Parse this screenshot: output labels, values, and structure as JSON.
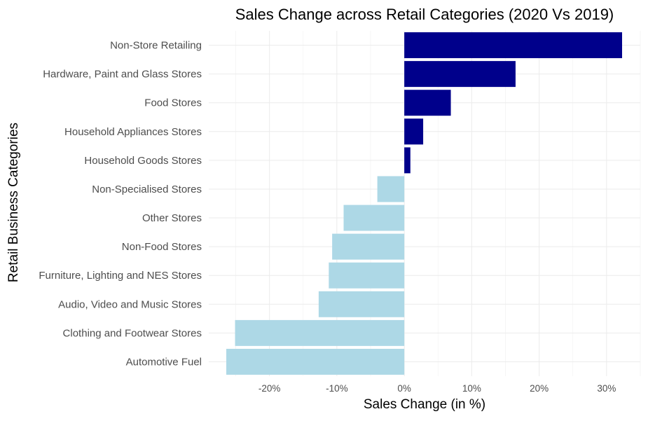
{
  "chart_data": {
    "type": "bar",
    "orientation": "horizontal",
    "title": "Sales Change across Retail Categories (2020 Vs 2019)",
    "xlabel": "Sales Change (in %)",
    "ylabel": "Retail Business Categories",
    "categories": [
      "Non-Store Retailing",
      "Hardware, Paint and Glass Stores",
      "Food Stores",
      "Household Appliances Stores",
      "Household Goods Stores",
      "Non-Specialised Stores",
      "Other Stores",
      "Non-Food Stores",
      "Furniture, Lighting and NES Stores",
      "Audio, Video and Music Stores",
      "Clothing and Footwear Stores",
      "Automotive Fuel"
    ],
    "values": [
      32.3,
      16.5,
      6.9,
      2.8,
      0.9,
      -4.0,
      -9.0,
      -10.7,
      -11.2,
      -12.7,
      -25.1,
      -26.4
    ],
    "xlim": [
      -29,
      35
    ],
    "xticks": [
      -20,
      -10,
      0,
      10,
      20,
      30
    ],
    "xtick_labels": [
      "-20%",
      "-10%",
      "0%",
      "10%",
      "20%",
      "30%"
    ],
    "grid": true,
    "legend": "none",
    "colors": {
      "positive": "#00008B",
      "negative": "#ADD8E6",
      "grid": "#EBEBEB",
      "text": "#4D4D4D"
    }
  }
}
